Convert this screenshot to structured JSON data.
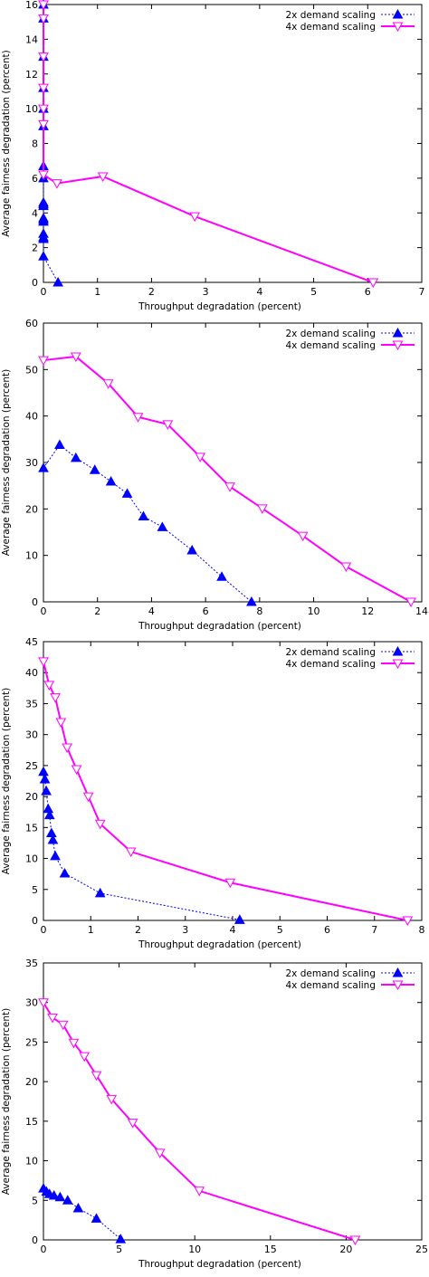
{
  "chart_data": [
    {
      "type": "line",
      "xlabel": "Throughput degradation (percent)",
      "ylabel": "Average fairness degradation (percent)",
      "xlim": [
        0,
        7
      ],
      "ylim": [
        0,
        16
      ],
      "xticks": [
        "0",
        "1",
        "2",
        "3",
        "4",
        "5",
        "6",
        "7"
      ],
      "yticks": [
        "0",
        "2",
        "4",
        "6",
        "8",
        "10",
        "12",
        "14",
        "16"
      ],
      "grid": false,
      "legend": "top-right",
      "series": [
        {
          "name": "2x demand scaling",
          "color": "#0000ff",
          "line": "dotted",
          "marker": "triangle-up",
          "x": [
            0.0,
            0.0,
            0.0,
            0.0,
            0.0,
            0.0,
            0.0,
            0.0,
            0.0,
            0.0,
            0.0,
            0.0,
            0.0,
            0.0,
            0.0,
            0.0,
            0.0,
            0.0,
            0.27
          ],
          "y": [
            16.0,
            15.2,
            13.0,
            11.2,
            10.0,
            9.0,
            6.7,
            6.0,
            4.6,
            4.5,
            4.4,
            3.7,
            3.6,
            3.5,
            2.8,
            2.6,
            2.5,
            1.5,
            0.0
          ]
        },
        {
          "name": "4x demand scaling",
          "color": "#ff00ff",
          "line": "solid",
          "marker": "triangle-down",
          "x": [
            0.0,
            0.0,
            0.0,
            0.0,
            0.0,
            0.0,
            0.0,
            0.25,
            1.1,
            2.8,
            6.1
          ],
          "y": [
            16.0,
            15.2,
            13.0,
            11.2,
            10.0,
            9.1,
            6.2,
            5.7,
            6.1,
            3.8,
            0.0
          ]
        }
      ]
    },
    {
      "type": "line",
      "xlabel": "Throughput degradation (percent)",
      "ylabel": "Average fairness degradation (percent)",
      "xlim": [
        0,
        14
      ],
      "ylim": [
        0,
        60
      ],
      "xticks": [
        "0",
        "2",
        "4",
        "6",
        "8",
        "10",
        "12",
        "14"
      ],
      "yticks": [
        "0",
        "10",
        "20",
        "30",
        "40",
        "50",
        "60"
      ],
      "grid": false,
      "legend": "top-right",
      "series": [
        {
          "name": "2x demand scaling",
          "color": "#0000ff",
          "line": "dotted",
          "marker": "triangle-up",
          "x": [
            0.0,
            0.6,
            1.2,
            1.9,
            2.5,
            3.1,
            3.7,
            4.4,
            5.5,
            6.6,
            7.7
          ],
          "y": [
            28.8,
            33.8,
            31.0,
            28.4,
            25.9,
            23.3,
            18.4,
            16.1,
            11.1,
            5.4,
            0.0
          ]
        },
        {
          "name": "4x demand scaling",
          "color": "#ff00ff",
          "line": "solid",
          "marker": "triangle-down",
          "x": [
            0.0,
            1.2,
            2.4,
            3.5,
            4.6,
            5.8,
            6.9,
            8.1,
            9.6,
            11.2,
            13.6
          ],
          "y": [
            52.0,
            52.8,
            47.0,
            39.8,
            38.2,
            31.2,
            24.8,
            20.1,
            14.2,
            7.6,
            0.0
          ]
        }
      ]
    },
    {
      "type": "line",
      "xlabel": "Throughput degradation (percent)",
      "ylabel": "Average fairness degradation (percent)",
      "xlim": [
        0,
        8
      ],
      "ylim": [
        0,
        45
      ],
      "xticks": [
        "0",
        "1",
        "2",
        "3",
        "4",
        "5",
        "6",
        "7",
        "8"
      ],
      "yticks": [
        "0",
        "5",
        "10",
        "15",
        "20",
        "25",
        "30",
        "35",
        "40",
        "45"
      ],
      "grid": false,
      "legend": "top-right",
      "series": [
        {
          "name": "2x demand scaling",
          "color": "#0000ff",
          "line": "dotted",
          "marker": "triangle-up",
          "x": [
            0.0,
            0.03,
            0.06,
            0.1,
            0.13,
            0.17,
            0.2,
            0.25,
            0.45,
            1.2,
            4.15
          ],
          "y": [
            24.0,
            22.8,
            20.9,
            18.0,
            17.0,
            14.1,
            13.0,
            10.4,
            7.6,
            4.4,
            0.1
          ]
        },
        {
          "name": "4x demand scaling",
          "color": "#ff00ff",
          "line": "solid",
          "marker": "triangle-down",
          "x": [
            0.0,
            0.12,
            0.25,
            0.37,
            0.5,
            0.7,
            0.95,
            1.2,
            1.85,
            3.95,
            7.7
          ],
          "y": [
            41.8,
            38.0,
            36.0,
            32.0,
            27.9,
            24.4,
            20.0,
            15.6,
            11.1,
            6.1,
            0.0
          ]
        }
      ]
    },
    {
      "type": "line",
      "xlabel": "Throughput degradation (percent)",
      "ylabel": "Average fairness degradation (percent)",
      "xlim": [
        0,
        25
      ],
      "ylim": [
        0,
        35
      ],
      "xticks": [
        "0",
        "5",
        "10",
        "15",
        "20",
        "25"
      ],
      "yticks": [
        "0",
        "5",
        "10",
        "15",
        "20",
        "25",
        "30",
        "35"
      ],
      "grid": false,
      "legend": "top-right",
      "series": [
        {
          "name": "2x demand scaling",
          "color": "#0000ff",
          "line": "dotted",
          "marker": "triangle-up",
          "x": [
            0.0,
            0.2,
            0.4,
            0.7,
            1.1,
            1.6,
            2.3,
            3.5,
            5.1
          ],
          "y": [
            6.5,
            6.1,
            5.8,
            5.6,
            5.4,
            5.0,
            4.0,
            2.7,
            0.1
          ]
        },
        {
          "name": "4x demand scaling",
          "color": "#ff00ff",
          "line": "solid",
          "marker": "triangle-down",
          "x": [
            0.0,
            0.6,
            1.3,
            2.0,
            2.7,
            3.5,
            4.5,
            5.9,
            7.7,
            10.3,
            20.6
          ],
          "y": [
            30.0,
            28.1,
            27.2,
            24.9,
            23.2,
            20.8,
            17.8,
            14.8,
            11.0,
            6.2,
            0.0
          ]
        }
      ]
    }
  ]
}
